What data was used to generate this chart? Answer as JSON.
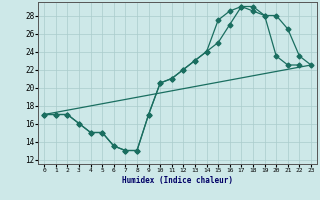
{
  "xlabel": "Humidex (Indice chaleur)",
  "xlim": [
    -0.5,
    23.5
  ],
  "ylim": [
    11.5,
    29.5
  ],
  "yticks": [
    12,
    14,
    16,
    18,
    20,
    22,
    24,
    26,
    28
  ],
  "xticks": [
    0,
    1,
    2,
    3,
    4,
    5,
    6,
    7,
    8,
    9,
    10,
    11,
    12,
    13,
    14,
    15,
    16,
    17,
    18,
    19,
    20,
    21,
    22,
    23
  ],
  "bg_color": "#cde8e8",
  "grid_color": "#aacccc",
  "line_color": "#1a6e60",
  "curve1_x": [
    0,
    1,
    2,
    3,
    4,
    5,
    6,
    7,
    8,
    9,
    10,
    11,
    12,
    13,
    14,
    15,
    16,
    17,
    18,
    19,
    20,
    21,
    22
  ],
  "curve1_y": [
    17,
    17,
    17,
    16,
    15,
    15,
    13.5,
    13,
    13,
    17,
    20.5,
    21,
    22,
    23,
    24,
    27.5,
    28.5,
    29,
    28.5,
    28,
    23.5,
    22.5,
    22.5
  ],
  "curve2_x": [
    0,
    1,
    2,
    3,
    4,
    5,
    6,
    7,
    8,
    9,
    10,
    11,
    12,
    13,
    14,
    15,
    16,
    17,
    18,
    19,
    20,
    21,
    22,
    23
  ],
  "curve2_y": [
    17,
    17,
    17,
    16,
    15,
    15,
    13.5,
    13,
    13,
    17,
    20.5,
    21,
    22,
    23,
    24,
    25,
    27,
    29,
    29,
    28,
    28,
    26.5,
    23.5,
    22.5
  ],
  "line3_x": [
    0,
    23
  ],
  "line3_y": [
    17,
    22.5
  ],
  "markersize": 2.5,
  "linewidth": 0.9
}
